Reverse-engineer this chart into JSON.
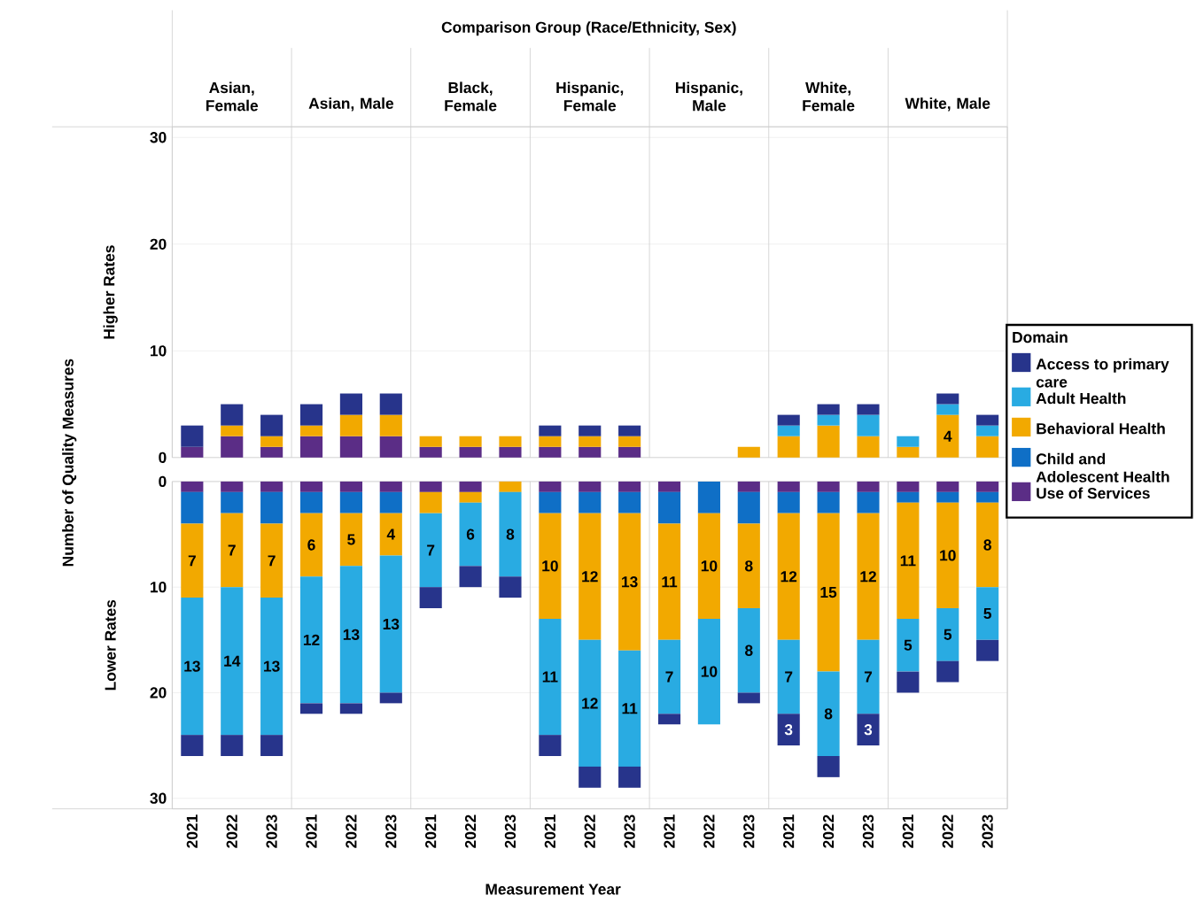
{
  "chart_data": [
    {
      "type": "bar",
      "stacked": true,
      "title": "Comparison Group (Race/Ethnicity, Sex)",
      "ylabel": "Number of Quality Measures",
      "grid": "y",
      "tick_labels": "y",
      "annotations": [
        "Higher Rates",
        "Asian, Female",
        "Asian, Male",
        "Black, Female",
        "Hispanic, Female",
        "Hispanic, Male",
        "White, Female",
        "White, Male"
      ],
      "categories": [
        "2021",
        "2022",
        "2023",
        "2021",
        "2022",
        "2023",
        "2021",
        "2022",
        "2023",
        "2021",
        "2022",
        "2023",
        "2021",
        "2022",
        "2023",
        "2021",
        "2022",
        "2023",
        "2021",
        "2022",
        "2023"
      ],
      "ylim": [
        0,
        31
      ],
      "yticks": [
        0,
        10,
        20,
        30
      ],
      "series": [
        {
          "color": "#5b2d86",
          "values": [
            1,
            2,
            1,
            2,
            2,
            2,
            1,
            1,
            1,
            1,
            1,
            1,
            0,
            0,
            0,
            0,
            0,
            0,
            0,
            0,
            0
          ]
        },
        {
          "color": "#f2a900",
          "values": [
            0,
            1,
            1,
            1,
            2,
            2,
            1,
            1,
            1,
            1,
            1,
            1,
            0,
            0,
            1,
            2,
            3,
            2,
            1,
            4,
            2
          ],
          "value_labels": [
            null,
            null,
            null,
            null,
            null,
            null,
            null,
            null,
            null,
            null,
            null,
            null,
            null,
            null,
            null,
            null,
            null,
            null,
            null,
            "4",
            null
          ]
        },
        {
          "color": "#29abe2",
          "values": [
            0,
            0,
            0,
            0,
            0,
            0,
            0,
            0,
            0,
            0,
            0,
            0,
            0,
            0,
            0,
            1,
            1,
            2,
            1,
            1,
            1
          ]
        },
        {
          "color": "#27348b",
          "values": [
            2,
            2,
            2,
            2,
            2,
            2,
            0,
            0,
            0,
            1,
            1,
            1,
            0,
            0,
            0,
            1,
            1,
            1,
            0,
            1,
            1
          ]
        }
      ]
    },
    {
      "type": "bar",
      "stacked": true,
      "xlabel": "Measurement Year",
      "legend_title": "Domain",
      "legend": "right",
      "grid": "y",
      "annotations": [
        "Lower Rates"
      ],
      "categories": [
        "2021",
        "2022",
        "2023",
        "2021",
        "2022",
        "2023",
        "2021",
        "2022",
        "2023",
        "2021",
        "2022",
        "2023",
        "2021",
        "2022",
        "2023",
        "2021",
        "2022",
        "2023",
        "2021",
        "2022",
        "2023"
      ],
      "ylim": [
        31,
        0
      ],
      "yticks": [
        0,
        10,
        20,
        30
      ],
      "series": [
        {
          "name": "Use of Services",
          "color": "#5b2d86",
          "values": [
            1,
            1,
            1,
            1,
            1,
            1,
            1,
            1,
            0,
            1,
            1,
            1,
            1,
            0,
            1,
            1,
            1,
            1,
            1,
            1,
            1
          ]
        },
        {
          "name": "Child and Adolescent Health",
          "color": "#0f6fc6",
          "values": [
            3,
            2,
            3,
            2,
            2,
            2,
            0,
            0,
            0,
            2,
            2,
            2,
            3,
            3,
            3,
            2,
            2,
            2,
            1,
            1,
            1
          ]
        },
        {
          "name": "Behavioral Health",
          "color": "#f2a900",
          "values": [
            7,
            7,
            7,
            6,
            5,
            4,
            2,
            1,
            1,
            10,
            12,
            13,
            11,
            10,
            8,
            12,
            15,
            12,
            11,
            10,
            8
          ],
          "value_labels": [
            "7",
            "7",
            "7",
            "6",
            "5",
            "4",
            null,
            null,
            null,
            "10",
            "12",
            "13",
            "11",
            "10",
            "8",
            "12",
            "15",
            "12",
            "11",
            "10",
            "8"
          ]
        },
        {
          "name": "Adult Health",
          "color": "#29abe2",
          "values": [
            13,
            14,
            13,
            12,
            13,
            13,
            7,
            6,
            8,
            11,
            12,
            11,
            7,
            10,
            8,
            7,
            8,
            7,
            5,
            5,
            5
          ],
          "value_labels": [
            "13",
            "14",
            "13",
            "12",
            "13",
            "13",
            "7",
            "6",
            "8",
            "11",
            "12",
            "11",
            "7",
            "10",
            "8",
            "7",
            "8",
            "7",
            "5",
            "5",
            "5"
          ]
        },
        {
          "name": "Access to primary care",
          "color": "#27348b",
          "values": [
            2,
            2,
            2,
            1,
            1,
            1,
            2,
            2,
            2,
            2,
            2,
            2,
            1,
            0,
            1,
            3,
            2,
            3,
            2,
            2,
            2
          ],
          "value_labels": [
            null,
            null,
            null,
            null,
            null,
            null,
            null,
            null,
            null,
            null,
            null,
            null,
            null,
            null,
            null,
            "3",
            null,
            "3",
            null,
            null,
            null
          ]
        }
      ]
    }
  ]
}
